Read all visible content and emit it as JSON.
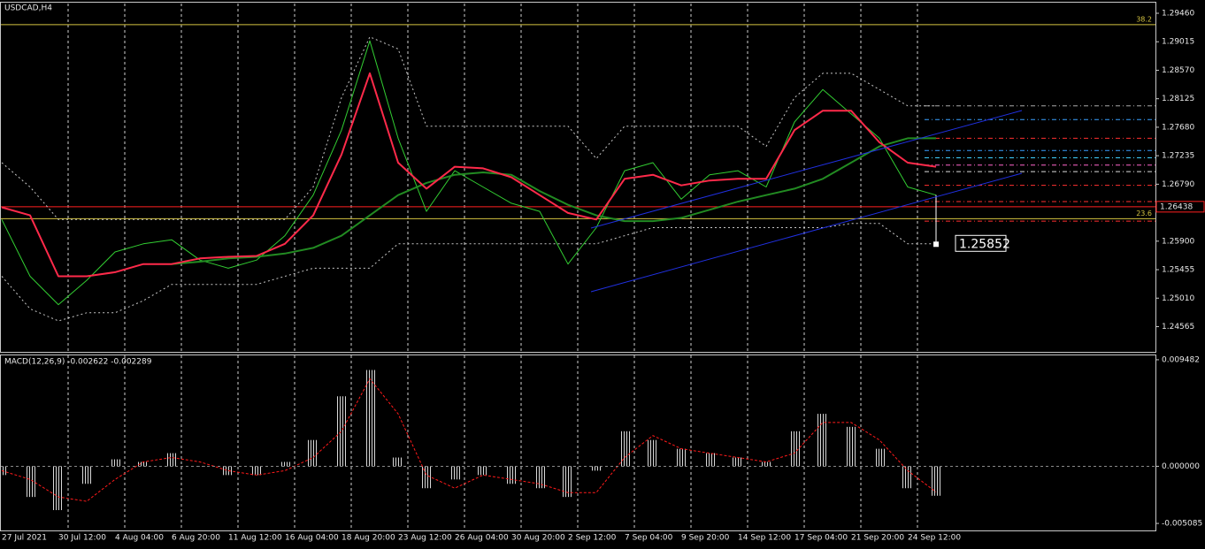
{
  "chart_data": [
    {
      "type": "line",
      "title": "USDCAD,H4",
      "categories": [
        "27 Jul 2021",
        null,
        "30 Jul 12:00",
        null,
        "4 Aug 04:00",
        null,
        "6 Aug 20:00",
        null,
        "11 Aug 12:00",
        null,
        "16 Aug 04:00",
        null,
        "18 Aug 20:00",
        null,
        "23 Aug 12:00",
        null,
        "26 Aug 04:00",
        null,
        "30 Aug 20:00",
        null,
        "2 Sep 12:00",
        null,
        "7 Sep 04:00",
        null,
        "9 Sep 20:00",
        null,
        "14 Sep 12:00",
        null,
        "17 Sep 04:00",
        null,
        "21 Sep 20:00",
        null,
        "24 Sep 12:00",
        null,
        null,
        null,
        null,
        null,
        null,
        null,
        null
      ],
      "series": [
        {
          "color": "#c8c8c8",
          "style": "dashed",
          "values": [
            1.27127,
            1.26746,
            1.26239,
            1.26239,
            1.26239,
            1.26239,
            1.26239,
            1.26239,
            1.26239,
            1.26239,
            1.26239,
            1.26746,
            1.28141,
            1.29092,
            1.28902,
            1.27697,
            1.27697,
            1.27697,
            1.27697,
            1.27697,
            1.27697,
            1.2719,
            1.27697,
            1.27697,
            1.27697,
            1.27697,
            1.27697,
            1.2738,
            1.28141,
            1.28522,
            1.28522,
            1.28268,
            1.28014,
            1.28014,
            null,
            null,
            null,
            null,
            null,
            null,
            null
          ]
        },
        {
          "color": "#c8c8c8",
          "style": "dashed",
          "values": [
            1.25352,
            1.24844,
            1.24654,
            1.24781,
            1.24781,
            1.24971,
            1.25225,
            1.25225,
            1.25225,
            1.25225,
            1.25352,
            1.25478,
            1.25478,
            1.25478,
            1.25859,
            1.25859,
            1.25859,
            1.25859,
            1.25859,
            1.25859,
            1.25859,
            1.25859,
            1.25986,
            1.26112,
            1.26112,
            1.26112,
            1.26112,
            1.26112,
            1.26112,
            1.26112,
            1.26176,
            1.26176,
            1.25859,
            1.25859,
            null,
            null,
            null,
            null,
            null,
            null,
            null
          ]
        },
        {
          "color": "#32cd32",
          "style": "thin",
          "values": [
            1.26239,
            1.25352,
            1.24908,
            1.25288,
            1.25732,
            1.25859,
            1.25922,
            1.25605,
            1.25478,
            1.25605,
            1.25986,
            1.2662,
            1.27634,
            1.29029,
            1.27507,
            1.26366,
            1.27,
            1.26746,
            1.26493,
            1.26366,
            1.25542,
            1.26112,
            1.27,
            1.27127,
            1.26556,
            1.26937,
            1.27,
            1.26746,
            1.27761,
            1.28268,
            1.27888,
            1.27507,
            1.26746,
            1.2662,
            null,
            null,
            null,
            null,
            null,
            null,
            null
          ]
        },
        {
          "color": "#228b22",
          "style": "solid",
          "values": [
            null,
            null,
            null,
            null,
            null,
            null,
            1.25542,
            1.2558,
            1.25631,
            1.25656,
            1.25707,
            1.25795,
            1.25986,
            1.26303,
            1.2662,
            1.2681,
            1.26937,
            1.26975,
            1.26937,
            1.26683,
            1.26468,
            1.26303,
            1.26214,
            1.26214,
            1.26265,
            1.26391,
            1.26518,
            1.2662,
            1.26721,
            1.26873,
            1.27127,
            1.2738,
            1.27507,
            1.27507,
            null,
            null,
            null,
            null,
            null,
            null,
            null
          ]
        },
        {
          "color": "#ff2a4a",
          "style": "solid",
          "values": [
            1.26429,
            1.26303,
            1.25352,
            1.25352,
            1.25415,
            1.25542,
            1.25542,
            1.25631,
            1.25656,
            1.25669,
            1.25859,
            1.26303,
            1.27254,
            1.28522,
            1.27127,
            1.26721,
            1.27063,
            1.27038,
            1.26899,
            1.2662,
            1.26341,
            1.26239,
            1.26873,
            1.26937,
            1.26772,
            1.26848,
            1.26873,
            1.26873,
            1.27634,
            1.27938,
            1.27938,
            1.27444,
            1.27127,
            1.27063,
            null,
            null,
            null,
            null,
            null,
            null,
            null
          ]
        }
      ],
      "ylim": [
        1.24185,
        1.29612
      ],
      "yticks": [
        {
          "value": 1.2946,
          "label": "1.29460"
        },
        1.29015,
        {
          "value": 1.2857,
          "label": "1.28570"
        },
        1.28125,
        {
          "value": 1.2768,
          "label": "1.27680"
        },
        1.27235,
        {
          "value": 1.2679,
          "label": "1.26790"
        },
        {
          "value": 1.259,
          "label": "1.25900"
        },
        1.25455,
        {
          "value": 1.2501,
          "label": "1.25010"
        },
        1.24565
      ],
      "grid": true,
      "levels": [
        {
          "value": 1.29283,
          "label": "38.2",
          "color": "#d4c341"
        },
        {
          "value": 1.26252,
          "label": "23.6",
          "color": "#d4c341"
        }
      ],
      "price_line": {
        "value": 1.26438,
        "label": "1.26438",
        "color": "#ff2020"
      },
      "last_price": {
        "value": 1.25852,
        "label": "1.25852"
      },
      "projection_levels": [
        {
          "value": 1.28014,
          "color": "#aaaaaa"
        },
        {
          "value": 1.27799,
          "color": "#3aa0ff"
        },
        {
          "value": 1.27507,
          "color": "#ff3030"
        },
        {
          "value": 1.27317,
          "color": "#3aa0ff"
        },
        {
          "value": 1.27203,
          "color": "#40d0ff"
        },
        {
          "value": 1.27089,
          "color": "#ff66cc"
        },
        {
          "value": 1.26987,
          "color": "#dddddd"
        },
        {
          "value": 1.26772,
          "color": "#ff3030"
        },
        {
          "value": 1.26518,
          "color": "#ff3030"
        },
        {
          "value": 1.26214,
          "color": "#ff3030"
        }
      ]
    },
    {
      "type": "bar",
      "title": "MACD(12,26,9) -0.002622 -0.002289",
      "series": [
        {
          "color": "#c8c8c8",
          "style": "bar",
          "values": [
            -0.00078,
            -0.00273,
            -0.0039,
            -0.00156,
            0.00062,
            0.00039,
            0.00117,
            0,
            -0.00078,
            -0.00078,
            0.00039,
            0.00234,
            0.00623,
            0.00857,
            0.00078,
            -0.00195,
            -0.00117,
            -0.00078,
            -0.00156,
            -0.00195,
            -0.00273,
            -0.00039,
            0.00312,
            0.00234,
            0.00156,
            0.00117,
            0.00078,
            0.00039,
            0.00312,
            0.00467,
            0.00351,
            0.00156,
            -0.00195,
            -0.002622,
            null,
            null,
            null,
            null,
            null,
            null,
            null
          ]
        },
        {
          "color": "#ff1a1a",
          "style": "dashed",
          "values": [
            -0.00039,
            -0.00117,
            -0.00273,
            -0.00312,
            -0.00117,
            0.00039,
            0.00078,
            0.00039,
            -0.00039,
            -0.00078,
            -0.00039,
            0.00078,
            0.00312,
            0.00779,
            0.00467,
            -0.00078,
            -0.00195,
            -0.00078,
            -0.00117,
            -0.00156,
            -0.00234,
            -0.00234,
            0.00078,
            0.00273,
            0.00156,
            0.00117,
            0.00078,
            0.00039,
            0.00117,
            0.0039,
            0.0039,
            0.00234,
            -0.00039,
            -0.002289,
            null,
            null,
            null,
            null,
            null,
            null,
            null
          ]
        }
      ],
      "ylim": [
        -0.00563,
        0.00987
      ],
      "yticks": [
        0.009482,
        {
          "value": 0,
          "label": "0.000000"
        },
        {
          "value": -0.005085,
          "label": "-0.005085"
        }
      ]
    }
  ]
}
